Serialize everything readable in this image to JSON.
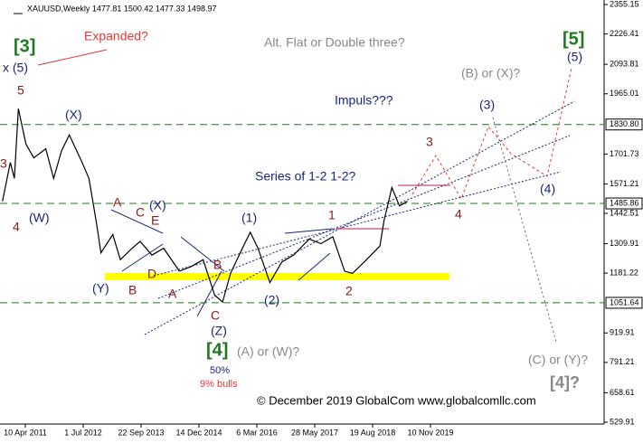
{
  "chart_data": {
    "type": "line",
    "title": "XAUUSD,Weekly 1477.81 1500.42 1477.33 1498.97",
    "x": [
      "2010-10",
      "2010-12",
      "2011-01",
      "2011-02",
      "2011-04",
      "2011-06",
      "2011-09",
      "2011-11",
      "2012-01",
      "2012-03",
      "2012-06",
      "2012-08",
      "2012-10",
      "2012-11",
      "2013-02",
      "2013-04",
      "2013-07",
      "2013-09",
      "2013-12",
      "2014-03",
      "2014-07",
      "2014-10",
      "2015-01",
      "2015-04",
      "2015-06",
      "2015-08",
      "2015-11",
      "2016-01",
      "2016-03",
      "2016-06",
      "2016-09",
      "2016-12",
      "2017-04",
      "2017-07",
      "2017-10",
      "2018-01",
      "2018-03",
      "2018-06",
      "2018-10",
      "2018-11",
      "2019-01",
      "2019-03",
      "2019-05"
    ],
    "series": [
      {
        "color": "#000000",
        "values": [
          1495,
          1665,
          1595,
          1900,
          1745,
          1685,
          1725,
          1595,
          1715,
          1785,
          1675,
          1595,
          1390,
          1270,
          1350,
          1240,
          1290,
          1320,
          1260,
          1290,
          1190,
          1210,
          1240,
          1085,
          1055,
          1180,
          1290,
          1360,
          1290,
          1140,
          1230,
          1260,
          1330,
          1310,
          1340,
          1190,
          1180,
          1230,
          1300,
          1410,
          1555,
          1475,
          1495
        ]
      }
    ],
    "xlim": [
      "2010-09-26",
      "2023-07-16"
    ],
    "xticks": [
      {
        "value": "2011-04-10",
        "label": "10 Apr 2011"
      },
      {
        "value": "2012-07-01",
        "label": "1 Jul 2012"
      },
      {
        "value": "2013-09-22",
        "label": "22 Sep 2013"
      },
      {
        "value": "2014-12-14",
        "label": "14 Dec 2014"
      },
      {
        "value": "2016-03-06",
        "label": "6 Mar 2016"
      },
      {
        "value": "2017-05-28",
        "label": "28 May 2017"
      },
      {
        "value": "2018-08-19",
        "label": "19 Aug 2018"
      },
      {
        "value": "2019-11-10",
        "label": "10 Nov 2019"
      }
    ],
    "ylim": [
      478.5,
      2374.9
    ],
    "yticks": [
      2355.15,
      2226.41,
      2093.81,
      1965.01,
      1701.73,
      1571.21,
      1442.51,
      1309.91,
      1181.22,
      919.91,
      791.21,
      658.61,
      529.91
    ],
    "levels": [
      {
        "value": 1830.8,
        "label": "1830.80"
      },
      {
        "value": 1485.86,
        "label": "1485.86"
      },
      {
        "value": 1051.64,
        "label": "1051.64"
      }
    ],
    "level_color": "#1f7a1f",
    "annotations": [
      {
        "text": "[3]",
        "color": "#1f7a1f"
      },
      {
        "text": "x (5)",
        "color": "#1a237e"
      },
      {
        "text": "5",
        "color": "#8b1a1a"
      },
      {
        "text": "3",
        "color": "#8b1a1a"
      },
      {
        "text": "4",
        "color": "#8b1a1a"
      },
      {
        "text": "(W)",
        "color": "#1a237e"
      },
      {
        "text": "Expanded?",
        "color": "#e53935"
      },
      {
        "text": "Alt. Flat or Double three?",
        "color": "#888888"
      },
      {
        "text": "Impuls???",
        "color": "#1a237e"
      },
      {
        "text": "Series of 1-2 1-2?",
        "color": "#1a237e"
      },
      {
        "text": "(X)",
        "color": "#1a237e"
      },
      {
        "text": "A",
        "color": "#8b1a1a"
      },
      {
        "text": "C",
        "color": "#8b1a1a"
      },
      {
        "text": "(X)",
        "color": "#1a237e"
      },
      {
        "text": "E",
        "color": "#8b1a1a"
      },
      {
        "text": "B",
        "color": "#8b1a1a"
      },
      {
        "text": "D",
        "color": "#8b1a1a"
      },
      {
        "text": "B",
        "color": "#8b1a1a"
      },
      {
        "text": "A",
        "color": "#8b1a1a"
      },
      {
        "text": "(Y)",
        "color": "#1a237e"
      },
      {
        "text": "C",
        "color": "#8b1a1a"
      },
      {
        "text": "(Z)",
        "color": "#1a237e"
      },
      {
        "text": "[4]",
        "color": "#1f7a1f"
      },
      {
        "text": "(A) or (W)?",
        "color": "#888888"
      },
      {
        "text": "50%",
        "color": "#1a237e"
      },
      {
        "text": "9% bulls",
        "color": "#e53935"
      },
      {
        "text": "(1)",
        "color": "#1a237e"
      },
      {
        "text": "1",
        "color": "#8b1a1a"
      },
      {
        "text": "(2)",
        "color": "#1a237e"
      },
      {
        "text": "2",
        "color": "#8b1a1a"
      },
      {
        "text": "3",
        "color": "#8b1a1a"
      },
      {
        "text": "4",
        "color": "#8b1a1a"
      },
      {
        "text": "(3)",
        "color": "#1a237e"
      },
      {
        "text": "(4)",
        "color": "#1a237e"
      },
      {
        "text": "(B) or (X)?",
        "color": "#888888"
      },
      {
        "text": "[5]",
        "color": "#1f7a1f"
      },
      {
        "text": "(5)",
        "color": "#1a237e"
      },
      {
        "text": "(C) or (Y)?",
        "color": "#888888"
      },
      {
        "text": "[4]?",
        "color": "#888888"
      },
      {
        "text": "© December 2019 GlobalCom www.globalcomllc.com",
        "color": "#000000"
      }
    ]
  }
}
